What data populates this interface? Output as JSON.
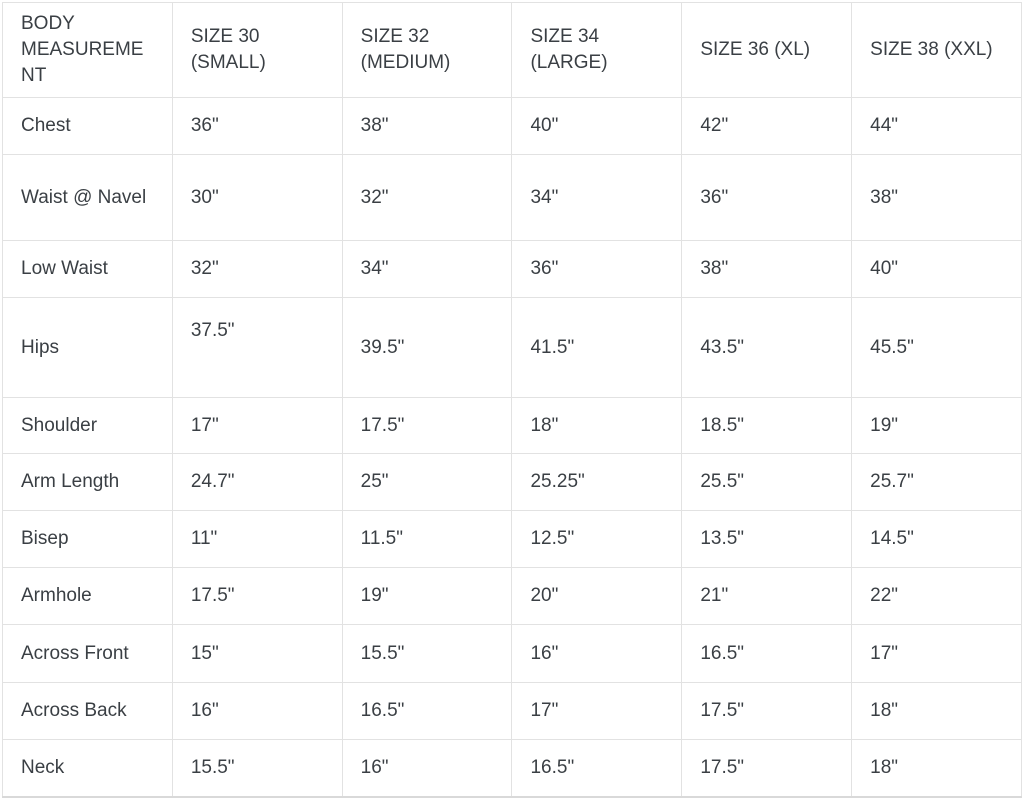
{
  "chart_data": {
    "type": "table",
    "columns": [
      "BODY MEASUREMENT",
      "SIZE 30 (SMALL)",
      "SIZE 32 (MEDIUM)",
      "SIZE 34 (LARGE)",
      "SIZE 36 (XL)",
      "SIZE 38 (XXL)"
    ],
    "rows": [
      {
        "label": "Chest",
        "values": [
          "36\"",
          "38\"",
          "40\"",
          "42\"",
          "44\""
        ]
      },
      {
        "label": "Waist @ Navel",
        "values": [
          "30\"",
          "32\"",
          "34\"",
          "36\"",
          "38\""
        ]
      },
      {
        "label": "Low Waist",
        "values": [
          "32\"",
          "34\"",
          "36\"",
          "38\"",
          "40\""
        ]
      },
      {
        "label": "Hips",
        "values": [
          "37.5\"",
          "39.5\"",
          "41.5\"",
          "43.5\"",
          "45.5\""
        ]
      },
      {
        "label": "Shoulder",
        "values": [
          "17\"",
          "17.5\"",
          "18\"",
          "18.5\"",
          "19\""
        ]
      },
      {
        "label": "Arm Length",
        "values": [
          "24.7\"",
          "25\"",
          "25.25\"",
          "25.5\"",
          "25.7\""
        ]
      },
      {
        "label": "Bisep",
        "values": [
          "11\"",
          "11.5\"",
          "12.5\"",
          "13.5\"",
          "14.5\""
        ]
      },
      {
        "label": "Armhole",
        "values": [
          "17.5\"",
          "19\"",
          "20\"",
          "21\"",
          "22\""
        ]
      },
      {
        "label": "Across Front",
        "values": [
          "15\"",
          "15.5\"",
          "16\"",
          "16.5\"",
          "17\""
        ]
      },
      {
        "label": "Across Back",
        "values": [
          "16\"",
          "16.5\"",
          "17\"",
          "17.5\"",
          "18\""
        ]
      },
      {
        "label": "Neck",
        "values": [
          "15.5\"",
          "16\"",
          "16.5\"",
          "17.5\"",
          "18\""
        ]
      }
    ]
  },
  "colors": {
    "text": "#3a3f44",
    "border": "#e2e2e2",
    "border_strong": "#d9d9d9",
    "background": "#ffffff"
  }
}
